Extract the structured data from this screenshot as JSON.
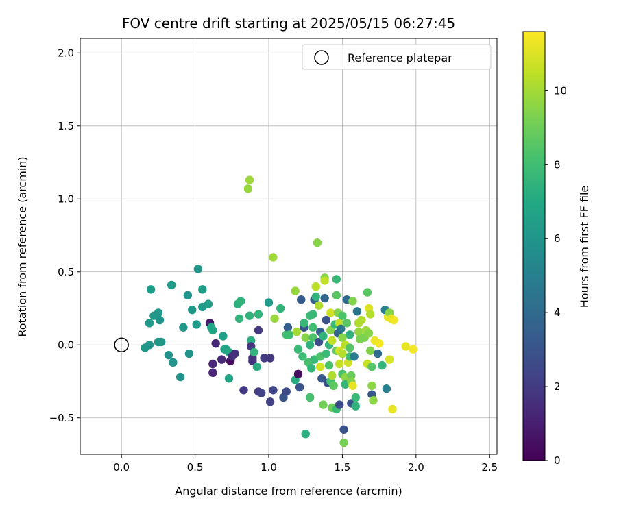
{
  "chart_data": {
    "type": "scatter",
    "title": "FOV centre drift starting at 2025/05/15 06:27:45",
    "xlabel": "Angular distance from reference (arcmin)",
    "ylabel": "Rotation from reference (arcmin)",
    "colorbar_label": "Hours from first FF file",
    "xlim": [
      -0.28,
      2.55
    ],
    "ylim": [
      -0.75,
      2.1
    ],
    "x_ticks": [
      0.0,
      0.5,
      1.0,
      1.5,
      2.0,
      2.5
    ],
    "x_tick_labels": [
      "0.0",
      "0.5",
      "1.0",
      "1.5",
      "2.0",
      "2.5"
    ],
    "y_ticks": [
      -0.5,
      0.0,
      0.5,
      1.0,
      1.5,
      2.0
    ],
    "y_tick_labels": [
      "−0.5",
      "0.0",
      "0.5",
      "1.0",
      "1.5",
      "2.0"
    ],
    "colorbar_range": [
      0,
      11.6
    ],
    "colorbar_ticks": [
      0,
      2,
      4,
      6,
      8,
      10
    ],
    "colorbar_tick_labels": [
      "0",
      "2",
      "4",
      "6",
      "8",
      "10"
    ],
    "colormap": "viridis",
    "grid": true,
    "legend": {
      "placement": "top-right",
      "label": "Reference platepar"
    },
    "reference_point": {
      "x": 0.0,
      "y": 0.0
    },
    "points": [
      [
        0.16,
        -0.02,
        6.1
      ],
      [
        0.19,
        0.0,
        6.1
      ],
      [
        0.19,
        0.15,
        6.2
      ],
      [
        0.2,
        0.38,
        6.3
      ],
      [
        0.22,
        0.2,
        6.2
      ],
      [
        0.25,
        0.22,
        6.1
      ],
      [
        0.26,
        0.17,
        6.0
      ],
      [
        0.25,
        0.02,
        6.1
      ],
      [
        0.27,
        0.02,
        6.2
      ],
      [
        0.32,
        -0.07,
        5.9
      ],
      [
        0.34,
        0.41,
        6.2
      ],
      [
        0.35,
        -0.12,
        6.0
      ],
      [
        0.4,
        -0.22,
        5.9
      ],
      [
        0.42,
        0.12,
        6.1
      ],
      [
        0.45,
        0.34,
        6.0
      ],
      [
        0.46,
        -0.06,
        5.9
      ],
      [
        0.48,
        0.24,
        6.2
      ],
      [
        0.51,
        0.14,
        6.3
      ],
      [
        0.52,
        0.52,
        6.1
      ],
      [
        0.55,
        0.38,
        6.4
      ],
      [
        0.55,
        0.26,
        6.3
      ],
      [
        0.59,
        0.28,
        6.4
      ],
      [
        0.6,
        0.15,
        0.8
      ],
      [
        0.61,
        0.12,
        6.8
      ],
      [
        0.62,
        0.1,
        6.9
      ],
      [
        0.62,
        -0.13,
        1.2
      ],
      [
        0.62,
        -0.19,
        1.2
      ],
      [
        0.64,
        0.01,
        1.3
      ],
      [
        0.68,
        -0.1,
        1.4
      ],
      [
        0.69,
        0.06,
        6.5
      ],
      [
        0.7,
        -0.03,
        6.6
      ],
      [
        0.71,
        -0.03,
        6.7
      ],
      [
        0.73,
        -0.05,
        7.0
      ],
      [
        0.74,
        -0.11,
        0.3
      ],
      [
        0.73,
        -0.23,
        6.8
      ],
      [
        0.75,
        -0.08,
        1.5
      ],
      [
        0.77,
        -0.06,
        1.6
      ],
      [
        0.79,
        0.28,
        7.3
      ],
      [
        0.8,
        0.18,
        7.5
      ],
      [
        0.81,
        0.3,
        7.4
      ],
      [
        0.83,
        -0.31,
        2.0
      ],
      [
        0.86,
        1.07,
        9.8
      ],
      [
        0.87,
        1.13,
        9.9
      ],
      [
        0.87,
        0.2,
        7.5
      ],
      [
        0.88,
        0.03,
        7.2
      ],
      [
        0.88,
        -0.01,
        1.7
      ],
      [
        0.89,
        -0.09,
        1.6
      ],
      [
        0.89,
        -0.11,
        1.7
      ],
      [
        0.9,
        -0.05,
        7.5
      ],
      [
        0.92,
        -0.15,
        7.2
      ],
      [
        0.93,
        0.21,
        7.5
      ],
      [
        0.93,
        0.1,
        1.9
      ],
      [
        0.93,
        -0.32,
        2.0
      ],
      [
        0.95,
        -0.33,
        2.3
      ],
      [
        0.97,
        -0.09,
        2.0
      ],
      [
        1.0,
        0.29,
        6.3
      ],
      [
        1.01,
        -0.09,
        1.8
      ],
      [
        1.01,
        -0.39,
        2.2
      ],
      [
        1.03,
        -0.31,
        2.4
      ],
      [
        1.03,
        0.6,
        9.9
      ],
      [
        1.04,
        0.18,
        9.8
      ],
      [
        1.08,
        0.25,
        7.5
      ],
      [
        1.1,
        -0.36,
        3.0
      ],
      [
        1.12,
        0.07,
        8.1
      ],
      [
        1.12,
        -0.32,
        2.6
      ],
      [
        1.13,
        0.12,
        3.5
      ],
      [
        1.14,
        0.07,
        8.0
      ],
      [
        1.18,
        0.37,
        9.8
      ],
      [
        1.18,
        -0.24,
        7.2
      ],
      [
        1.19,
        0.09,
        10.0
      ],
      [
        1.2,
        -0.03,
        7.8
      ],
      [
        1.2,
        -0.2,
        0.5
      ],
      [
        1.21,
        -0.29,
        3.0
      ],
      [
        1.22,
        0.31,
        3.4
      ],
      [
        1.23,
        -0.08,
        7.9
      ],
      [
        1.24,
        0.12,
        3.0
      ],
      [
        1.24,
        0.15,
        7.7
      ],
      [
        1.25,
        0.05,
        9.5
      ],
      [
        1.25,
        -0.61,
        7.3
      ],
      [
        1.27,
        -0.12,
        8.2
      ],
      [
        1.28,
        0.2,
        7.9
      ],
      [
        1.28,
        0.0,
        7.5
      ],
      [
        1.28,
        -0.36,
        8.2
      ],
      [
        1.29,
        -0.16,
        7.6
      ],
      [
        1.3,
        0.21,
        7.7
      ],
      [
        1.3,
        0.12,
        8.0
      ],
      [
        1.3,
        0.05,
        8.3
      ],
      [
        1.31,
        -0.1,
        7.8
      ],
      [
        1.31,
        0.31,
        3.5
      ],
      [
        1.32,
        0.33,
        7.5
      ],
      [
        1.32,
        0.4,
        10.4
      ],
      [
        1.33,
        0.7,
        9.5
      ],
      [
        1.34,
        0.27,
        10.2
      ],
      [
        1.34,
        0.02,
        2.7
      ],
      [
        1.35,
        0.09,
        3.5
      ],
      [
        1.35,
        -0.08,
        8.3
      ],
      [
        1.35,
        -0.15,
        10.8
      ],
      [
        1.36,
        -0.23,
        3.2
      ],
      [
        1.37,
        0.06,
        7.5
      ],
      [
        1.37,
        -0.41,
        9.1
      ],
      [
        1.38,
        0.46,
        9.5
      ],
      [
        1.38,
        0.44,
        10.5
      ],
      [
        1.38,
        0.32,
        3.8
      ],
      [
        1.39,
        0.17,
        3.0
      ],
      [
        1.39,
        -0.06,
        7.8
      ],
      [
        1.4,
        -0.26,
        2.8
      ],
      [
        1.41,
        0.0,
        7.6
      ],
      [
        1.41,
        -0.14,
        8.3
      ],
      [
        1.42,
        0.22,
        10.8
      ],
      [
        1.42,
        0.1,
        9.5
      ],
      [
        1.42,
        -0.25,
        8.1
      ],
      [
        1.43,
        0.03,
        10.5
      ],
      [
        1.43,
        -0.21,
        10.2
      ],
      [
        1.43,
        -0.43,
        9.0
      ],
      [
        1.44,
        -0.28,
        8.7
      ],
      [
        1.45,
        0.14,
        7.8
      ],
      [
        1.46,
        0.45,
        7.7
      ],
      [
        1.46,
        0.34,
        8.6
      ],
      [
        1.46,
        -0.04,
        8.9
      ],
      [
        1.46,
        -0.44,
        7.8
      ],
      [
        1.47,
        0.22,
        9.4
      ],
      [
        1.47,
        0.08,
        3.6
      ],
      [
        1.48,
        0.15,
        10.5
      ],
      [
        1.48,
        -0.04,
        10.8
      ],
      [
        1.48,
        -0.13,
        10.6
      ],
      [
        1.48,
        -0.41,
        2.7
      ],
      [
        1.49,
        0.11,
        4.5
      ],
      [
        1.5,
        0.2,
        8.3
      ],
      [
        1.5,
        0.05,
        9.5
      ],
      [
        1.5,
        -0.06,
        10.3
      ],
      [
        1.5,
        -0.2,
        8.3
      ],
      [
        1.51,
        -0.58,
        3.0
      ],
      [
        1.51,
        -0.67,
        9.2
      ],
      [
        1.52,
        0.0,
        10.4
      ],
      [
        1.52,
        -0.22,
        9.6
      ],
      [
        1.52,
        -0.27,
        7.6
      ],
      [
        1.53,
        0.15,
        8.6
      ],
      [
        1.53,
        0.31,
        4.0
      ],
      [
        1.54,
        -0.12,
        10.8
      ],
      [
        1.55,
        0.07,
        7.5
      ],
      [
        1.55,
        -0.02,
        8.5
      ],
      [
        1.55,
        -0.08,
        8.0
      ],
      [
        1.56,
        -0.21,
        8.9
      ],
      [
        1.56,
        -0.25,
        9.4
      ],
      [
        1.56,
        -0.4,
        3.0
      ],
      [
        1.57,
        0.3,
        9.4
      ],
      [
        1.57,
        -0.28,
        11.2
      ],
      [
        1.58,
        -0.08,
        4.8
      ],
      [
        1.59,
        -0.36,
        7.7
      ],
      [
        1.59,
        -0.42,
        7.5
      ],
      [
        1.6,
        0.23,
        4.5
      ],
      [
        1.61,
        0.15,
        10.2
      ],
      [
        1.61,
        0.09,
        9.7
      ],
      [
        1.62,
        0.04,
        9.3
      ],
      [
        1.63,
        0.17,
        10.2
      ],
      [
        1.65,
        0.05,
        9.3
      ],
      [
        1.66,
        0.1,
        9.9
      ],
      [
        1.67,
        0.36,
        8.6
      ],
      [
        1.67,
        -0.13,
        10.6
      ],
      [
        1.68,
        0.25,
        11.0
      ],
      [
        1.68,
        0.08,
        9.5
      ],
      [
        1.69,
        0.21,
        10.3
      ],
      [
        1.69,
        -0.04,
        9.4
      ],
      [
        1.7,
        -0.28,
        9.6
      ],
      [
        1.7,
        -0.15,
        8.5
      ],
      [
        1.7,
        -0.34,
        3.2
      ],
      [
        1.71,
        -0.38,
        9.6
      ],
      [
        1.72,
        0.03,
        11.3
      ],
      [
        1.74,
        -0.06,
        4.0
      ],
      [
        1.75,
        0.01,
        11.4
      ],
      [
        1.77,
        -0.14,
        7.6
      ],
      [
        1.79,
        0.24,
        5.0
      ],
      [
        1.8,
        -0.3,
        5.0
      ],
      [
        1.81,
        0.19,
        11.2
      ],
      [
        1.82,
        0.22,
        9.5
      ],
      [
        1.82,
        -0.1,
        10.9
      ],
      [
        1.83,
        0.18,
        11.1
      ],
      [
        1.84,
        -0.44,
        11.2
      ],
      [
        1.85,
        0.17,
        11.4
      ],
      [
        1.93,
        -0.01,
        11.2
      ],
      [
        1.98,
        -0.03,
        11.4
      ]
    ]
  }
}
